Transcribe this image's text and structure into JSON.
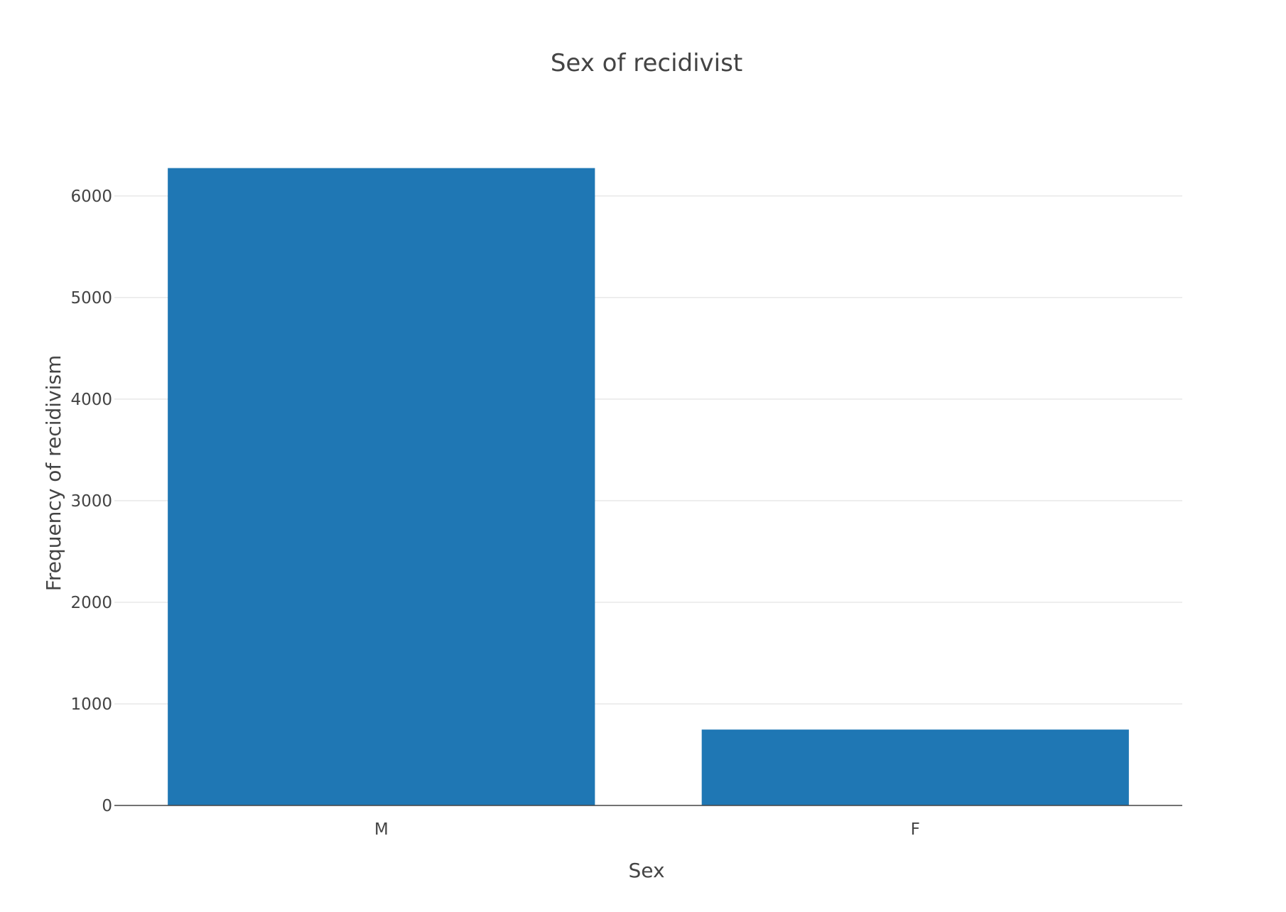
{
  "chart_data": {
    "type": "bar",
    "title": "Sex of recidivist",
    "xlabel": "Sex",
    "ylabel": "Frequency of recidivism",
    "categories": [
      "M",
      "F"
    ],
    "values": [
      6274,
      747
    ],
    "ylim": [
      0,
      6600
    ],
    "yticks": [
      0,
      1000,
      2000,
      3000,
      4000,
      5000,
      6000
    ],
    "ytick_labels": [
      "0",
      "1000",
      "2000",
      "3000",
      "4000",
      "5000",
      "6000"
    ],
    "grid": true,
    "legend": "none",
    "colors": {
      "bar": "#1f77b4",
      "grid": "#e8e8e8",
      "axis": "#444444",
      "text": "#444444"
    }
  }
}
